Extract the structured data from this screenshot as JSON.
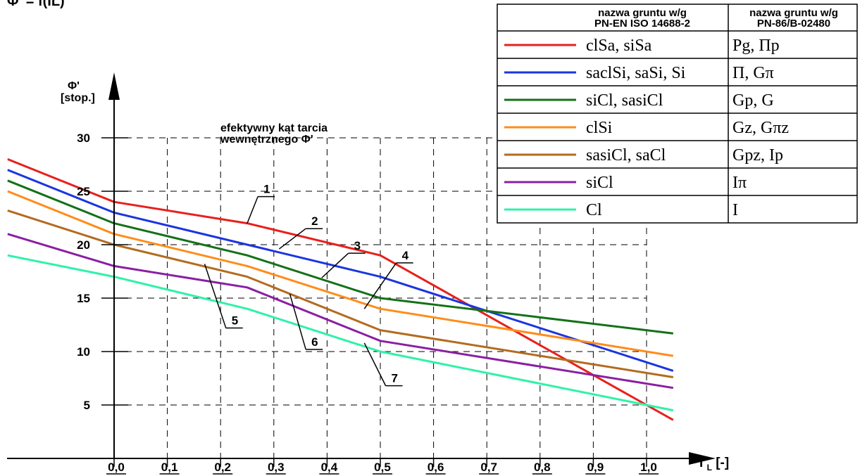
{
  "header_text": "Φ' = f(IL)",
  "chart_data": {
    "type": "line",
    "title": "",
    "annotation": [
      "efektywny kąt tarcia",
      "wewnętrznego Φ'"
    ],
    "ylabel": [
      "Φ'",
      "[stop.]"
    ],
    "xlabel": {
      "main": "I",
      "sub": "L",
      "unit": " [-]"
    },
    "xlim": [
      -0.2,
      1.05
    ],
    "ylim": [
      0,
      30
    ],
    "x_ticks": [
      0.0,
      0.1,
      0.2,
      0.3,
      0.4,
      0.5,
      0.6,
      0.7,
      0.8,
      0.9,
      1.0
    ],
    "x_tick_labels": [
      "0,0",
      "0,1",
      "0,2",
      "0,3",
      "0,4",
      "0,5",
      "0,6",
      "0,7",
      "0,8",
      "0,9",
      "1,0"
    ],
    "y_ticks": [
      5,
      10,
      15,
      20,
      25,
      30
    ],
    "y_tick_labels": [
      "5",
      "10",
      "15",
      "20",
      "25",
      "30"
    ],
    "grid": true,
    "legend_position": "top-right",
    "legend_headers": [
      "nazwa gruntu w/g",
      "PN-EN ISO 14688-2",
      "nazwa gruntu w/g",
      "PN-86/B-02480"
    ],
    "series": [
      {
        "label": "1",
        "iso": "clSa, siSa",
        "pn": "Pg, Πp",
        "color": "#e8201c",
        "points": [
          [
            -0.2,
            28
          ],
          [
            0.0,
            24
          ],
          [
            0.25,
            22
          ],
          [
            0.5,
            19
          ],
          [
            1.05,
            3.6
          ]
        ]
      },
      {
        "label": "2",
        "iso": "saclSi, saSi, Si",
        "pn": "Π, Gπ",
        "color": "#1b35e0",
        "points": [
          [
            -0.2,
            27
          ],
          [
            0.0,
            23
          ],
          [
            0.25,
            20
          ],
          [
            0.5,
            17
          ],
          [
            1.05,
            8.2
          ]
        ]
      },
      {
        "label": "3",
        "iso": "siCl, sasiCl",
        "pn": "Gp, G",
        "color": "#137118",
        "points": [
          [
            -0.2,
            26
          ],
          [
            0.0,
            22
          ],
          [
            0.25,
            19
          ],
          [
            0.5,
            15
          ],
          [
            1.05,
            11.7
          ]
        ]
      },
      {
        "label": "4",
        "iso": "clSi",
        "pn": "Gz, Gπz",
        "color": "#ff8c1a",
        "points": [
          [
            -0.2,
            25
          ],
          [
            0.0,
            21
          ],
          [
            0.25,
            18
          ],
          [
            0.5,
            14
          ],
          [
            1.05,
            9.6
          ]
        ]
      },
      {
        "label": "5",
        "iso": "sasiCl, saCl",
        "pn": "Gpz, Ip",
        "color": "#b36b1f",
        "points": [
          [
            -0.2,
            23.2
          ],
          [
            0.0,
            20
          ],
          [
            0.25,
            17
          ],
          [
            0.5,
            12
          ],
          [
            1.05,
            7.6
          ]
        ]
      },
      {
        "label": "6",
        "iso": "siCl",
        "pn": "Iπ",
        "color": "#8a1fa3",
        "points": [
          [
            -0.2,
            21
          ],
          [
            0.0,
            18
          ],
          [
            0.25,
            16
          ],
          [
            0.5,
            11
          ],
          [
            1.05,
            6.6
          ]
        ]
      },
      {
        "label": "7",
        "iso": "Cl",
        "pn": "I",
        "color": "#2ef2a8",
        "points": [
          [
            -0.2,
            19
          ],
          [
            0.0,
            17
          ],
          [
            0.25,
            14
          ],
          [
            0.5,
            10
          ],
          [
            1.05,
            4.5
          ]
        ]
      }
    ]
  }
}
